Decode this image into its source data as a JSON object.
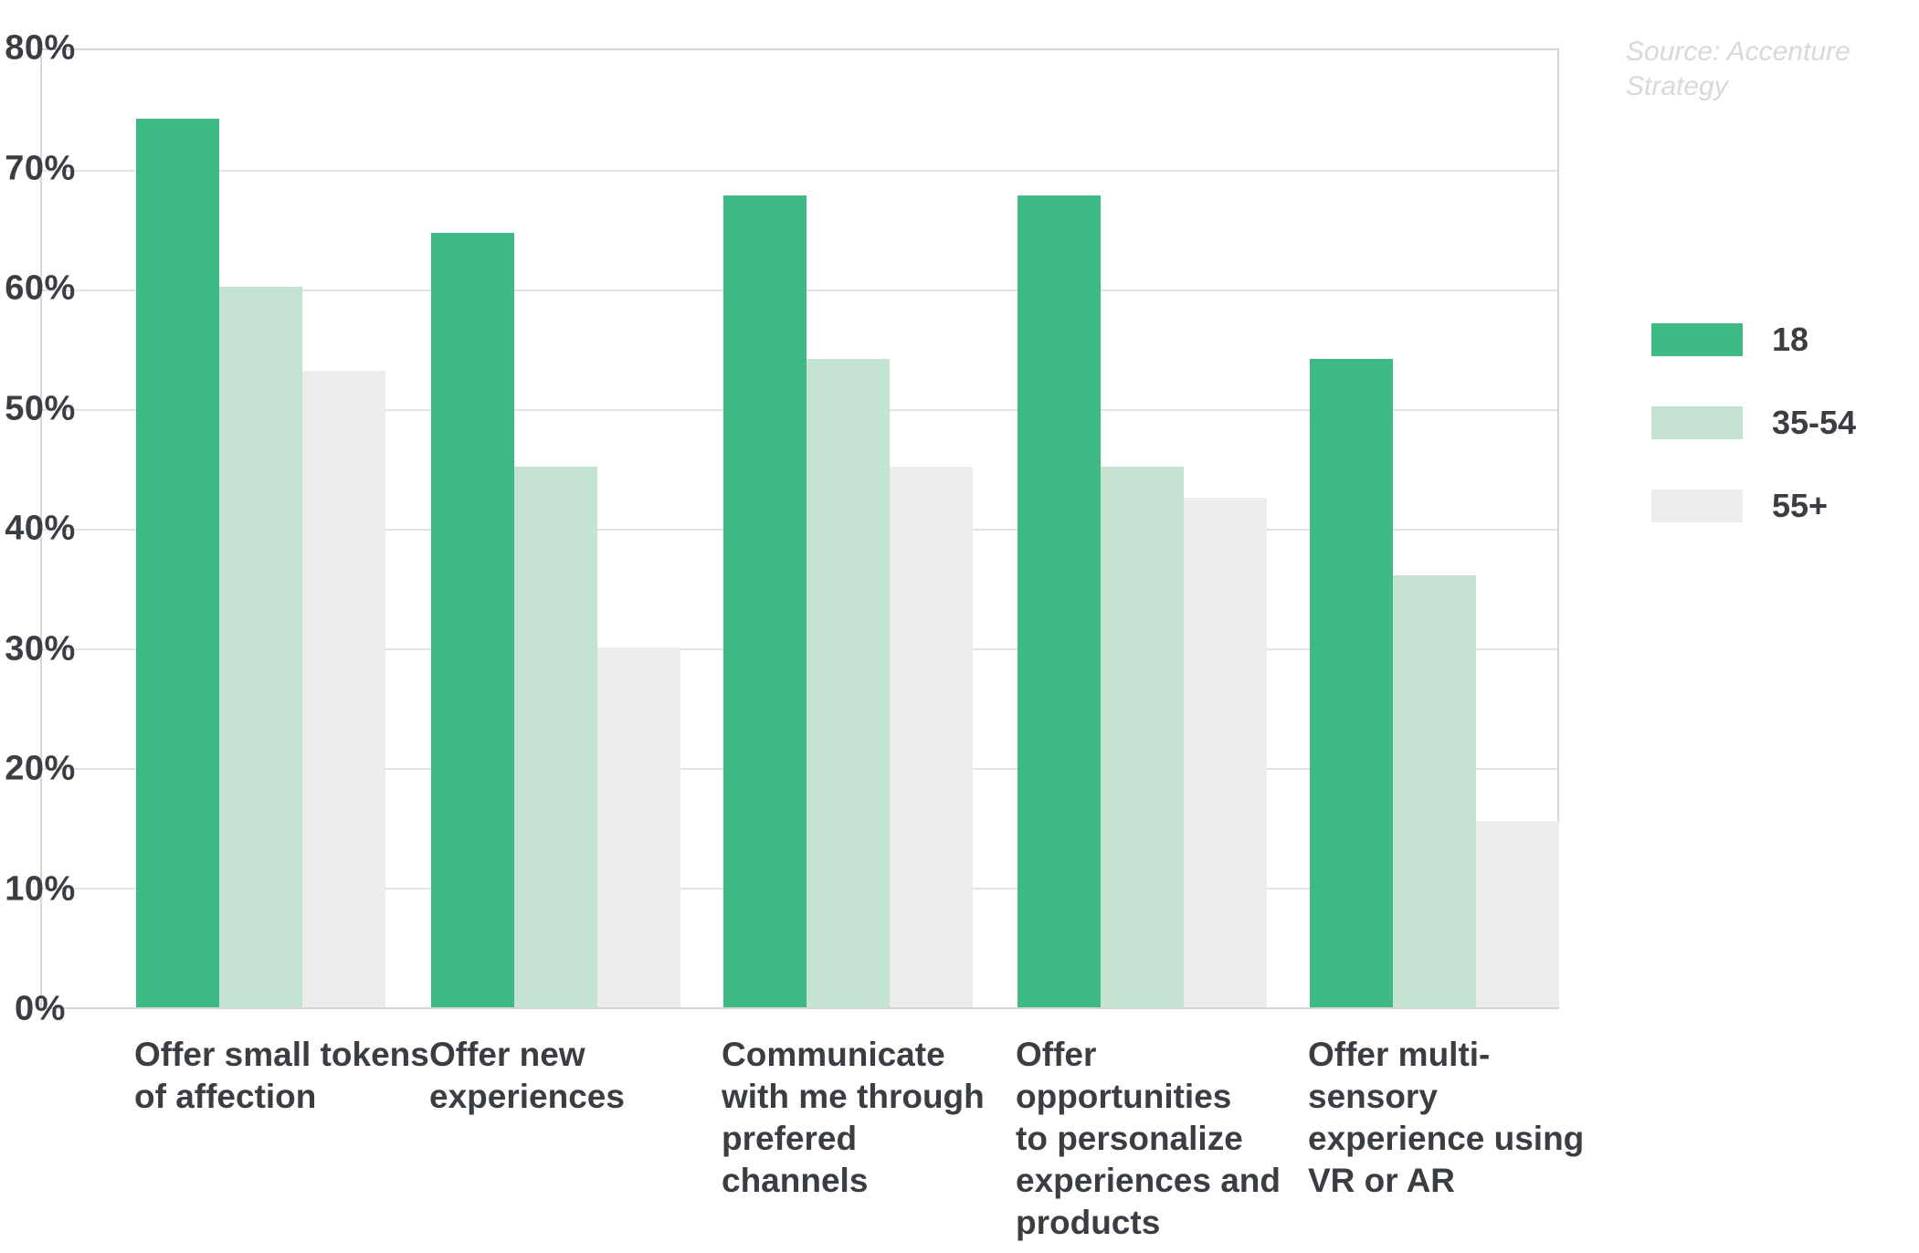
{
  "source_note": {
    "line1": "Source: Accenture",
    "line2": "Strategy"
  },
  "colors": {
    "series_18": "#3eb984",
    "series_35_54": "#c5e3d2",
    "series_55_plus": "#ececec",
    "grid": "#e3e3e3",
    "text": "#3a3e43",
    "source_text": "#d9d9d9"
  },
  "y_axis": {
    "unit": "%",
    "tick_labels": [
      "80%",
      "70%",
      "60%",
      "50%",
      "40%",
      "30%",
      "20%",
      "10%",
      "0%"
    ]
  },
  "legend": {
    "items": [
      {
        "label": "18",
        "color": "#3eb984"
      },
      {
        "label": "35-54",
        "color": "#c5e3d2"
      },
      {
        "label": "55+",
        "color": "#ececec"
      }
    ]
  },
  "chart_data": {
    "type": "bar",
    "title": "",
    "xlabel": "",
    "ylabel": "",
    "ylim": [
      0,
      80
    ],
    "grid": true,
    "legend_position": "right",
    "categories": [
      "Offer small tokens of affection",
      "Offer new experiences",
      "Communicate with me through prefered channels",
      "Offer opportunities to personalize experiences and products",
      "Offer multi-sensory experience using VR or AR"
    ],
    "category_lines": [
      [
        "Offer small tokens",
        "of affection"
      ],
      [
        "Offer new",
        "experiences"
      ],
      [
        "Communicate",
        "with me through",
        "prefered",
        "channels"
      ],
      [
        "Offer",
        "opportunities",
        "to personalize",
        "experiences and",
        "products"
      ],
      [
        "Offer multi-",
        "sensory",
        "experience using",
        "VR or AR"
      ]
    ],
    "series": [
      {
        "name": "18",
        "color": "#3eb984",
        "values": [
          74,
          64.5,
          67.6,
          67.6,
          54
        ]
      },
      {
        "name": "35-54",
        "color": "#c5e3d2",
        "values": [
          60,
          45,
          54,
          45,
          36
        ]
      },
      {
        "name": "55+",
        "color": "#ececec",
        "values": [
          53,
          30,
          45,
          42.4,
          15.5
        ]
      }
    ]
  }
}
